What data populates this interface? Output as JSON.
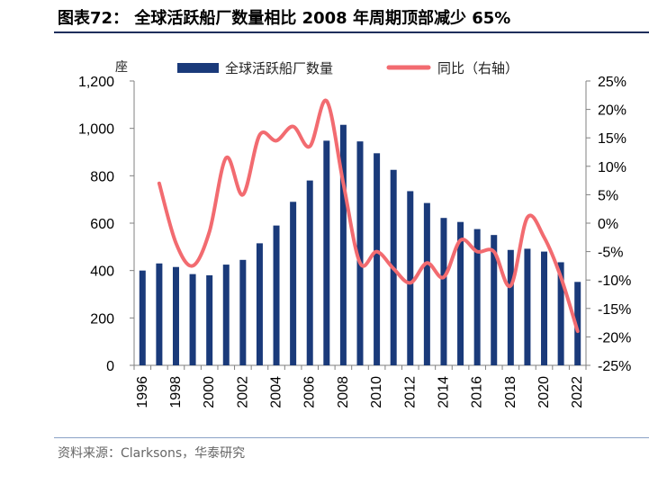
{
  "header": {
    "title": "图表72：  全球活跃船厂数量相比 2008 年周期顶部减少 65%"
  },
  "footer": {
    "source": "资料来源：Clarksons，华泰研究"
  },
  "chart_data": {
    "type": "bar+line",
    "y_left_unit": "座",
    "categories": [
      "1996",
      "1997",
      "1998",
      "1999",
      "2000",
      "2001",
      "2002",
      "2003",
      "2004",
      "2005",
      "2006",
      "2007",
      "2008",
      "2009",
      "2010",
      "2011",
      "2012",
      "2013",
      "2014",
      "2015",
      "2016",
      "2017",
      "2018",
      "2019",
      "2020",
      "2021",
      "2022"
    ],
    "x_tick_labels": [
      "1996",
      "1998",
      "2000",
      "2002",
      "2004",
      "2006",
      "2008",
      "2010",
      "2012",
      "2014",
      "2016",
      "2018",
      "2020",
      "2022"
    ],
    "y_left_ticks": [
      "0",
      "200",
      "400",
      "600",
      "800",
      "1,000",
      "1,200"
    ],
    "y_right_ticks": [
      "25%",
      "20%",
      "15%",
      "10%",
      "5%",
      "0%",
      "-5%",
      "-10%",
      "-15%",
      "-20%",
      "-25%"
    ],
    "ylim_left": [
      0,
      1200
    ],
    "ylim_right": [
      -25,
      25
    ],
    "legend": "top",
    "grid": false,
    "colors": {
      "bar": "#1a3a7a",
      "line": "#f26b70",
      "axis": "#808080"
    },
    "series": [
      {
        "name": "全球活跃船厂数量",
        "axis": "left",
        "kind": "bar",
        "values": [
          400,
          430,
          415,
          385,
          380,
          425,
          445,
          515,
          590,
          690,
          780,
          948,
          1015,
          945,
          895,
          825,
          735,
          685,
          622,
          605,
          575,
          550,
          487,
          492,
          480,
          435,
          352
        ]
      },
      {
        "name": "同比（右轴）",
        "axis": "right",
        "kind": "line",
        "values": [
          null,
          7,
          -3.5,
          -7.5,
          -1.5,
          11.5,
          5,
          15.5,
          14.5,
          17,
          13.5,
          21.5,
          7,
          -7,
          -5,
          -8,
          -10.5,
          -7,
          -9.5,
          -3,
          -5,
          -5,
          -11,
          1,
          -2.5,
          -9.5,
          -19
        ]
      }
    ]
  }
}
